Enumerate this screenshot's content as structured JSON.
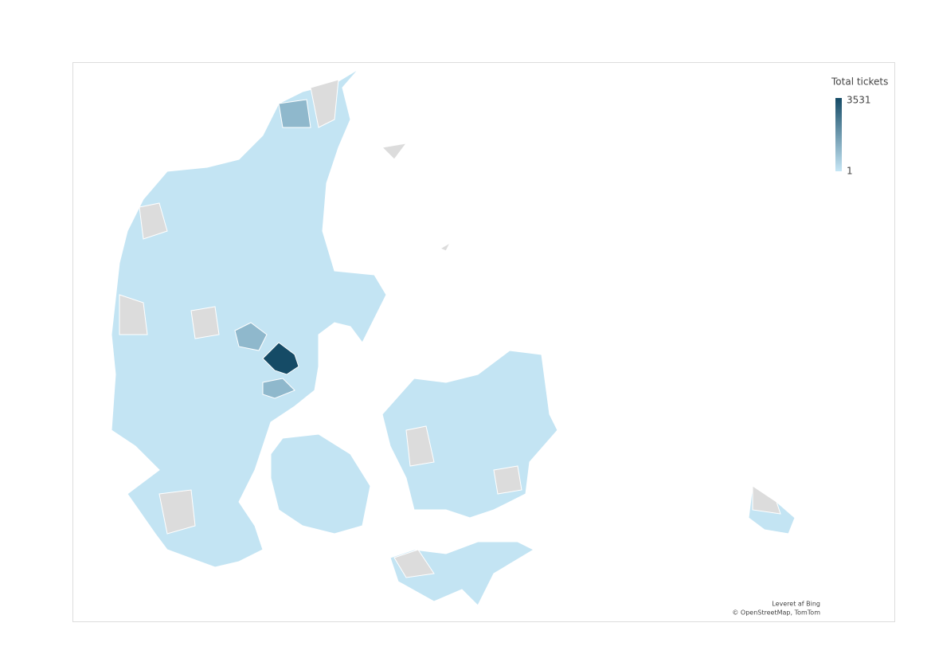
{
  "legend": {
    "title": "Total tickets",
    "max": 3531,
    "min": 1,
    "colors": [
      "#c6e6f5",
      "#154b66"
    ]
  },
  "attribution": {
    "line1": "Leveret af Bing",
    "line2": "© OpenStreetMap, TomTom"
  }
}
